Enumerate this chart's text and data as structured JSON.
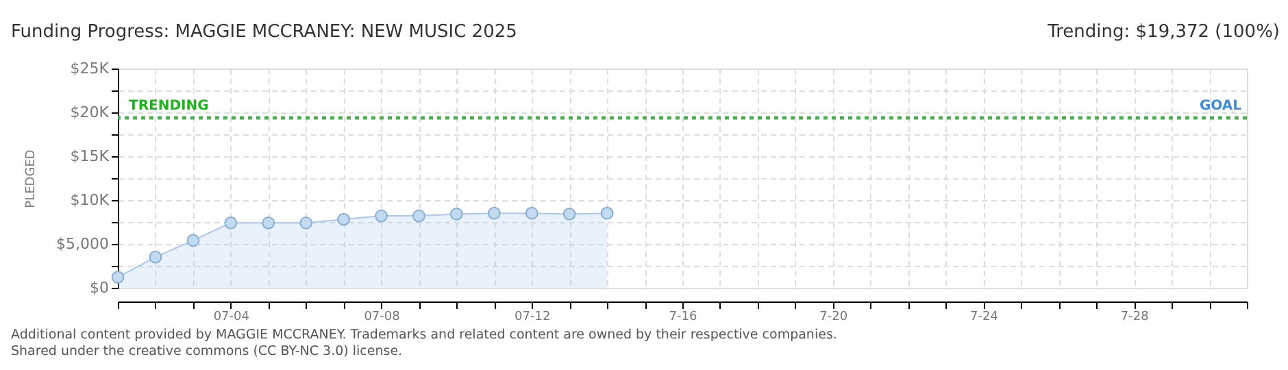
{
  "chart_data": {
    "type": "area",
    "title": "Funding Progress: MAGGIE MCCRANEY: NEW MUSIC 2025",
    "ylabel": "PLEDGED",
    "annotations": [
      "Trending: $19,372 (100%)",
      {
        "text": "GOAL",
        "x": "2025-07-31",
        "y": 19372
      },
      "Additional content provided by MAGGIE MCCRANEY. Trademarks and related content are owned by their respective companies.",
      "Shared under the creative commons (CC BY-NC 3.0) license."
    ],
    "x": [
      "2025-07-01",
      "2025-07-02",
      "2025-07-03",
      "2025-07-04",
      "2025-07-05",
      "2025-07-06",
      "2025-07-07",
      "2025-07-08",
      "2025-07-09",
      "2025-07-10",
      "2025-07-11",
      "2025-07-12",
      "2025-07-13",
      "2025-07-14"
    ],
    "series": [
      {
        "color": "#a9c8ec",
        "values": [
          1200,
          3500,
          5400,
          7400,
          7400,
          7400,
          7800,
          8200,
          8200,
          8400,
          8500,
          8500,
          8400,
          8500
        ]
      }
    ],
    "xlim": [
      "2025-07-01",
      "2025-07-31"
    ],
    "xticks": [
      {
        "value": "2025-07-01",
        "label": null
      },
      {
        "value": "2025-07-02",
        "label": null
      },
      {
        "value": "2025-07-03",
        "label": null
      },
      {
        "value": "2025-07-04",
        "label": "07-04"
      },
      {
        "value": "2025-07-05",
        "label": null
      },
      {
        "value": "2025-07-06",
        "label": null
      },
      {
        "value": "2025-07-07",
        "label": null
      },
      {
        "value": "2025-07-08",
        "label": "07-08"
      },
      {
        "value": "2025-07-09",
        "label": null
      },
      {
        "value": "2025-07-10",
        "label": null
      },
      {
        "value": "2025-07-11",
        "label": null
      },
      {
        "value": "2025-07-12",
        "label": "07-12"
      },
      {
        "value": "2025-07-13",
        "label": null
      },
      {
        "value": "2025-07-14",
        "label": null
      },
      {
        "value": "2025-07-15",
        "label": null
      },
      {
        "value": "2025-07-16",
        "label": "7-16"
      },
      {
        "value": "2025-07-17",
        "label": null
      },
      {
        "value": "2025-07-18",
        "label": null
      },
      {
        "value": "2025-07-19",
        "label": null
      },
      {
        "value": "2025-07-20",
        "label": "7-20"
      },
      {
        "value": "2025-07-21",
        "label": null
      },
      {
        "value": "2025-07-22",
        "label": null
      },
      {
        "value": "2025-07-23",
        "label": null
      },
      {
        "value": "2025-07-24",
        "label": "7-24"
      },
      {
        "value": "2025-07-25",
        "label": null
      },
      {
        "value": "2025-07-26",
        "label": null
      },
      {
        "value": "2025-07-27",
        "label": null
      },
      {
        "value": "2025-07-28",
        "label": "7-28"
      },
      {
        "value": "2025-07-29",
        "label": null
      },
      {
        "value": "2025-07-30",
        "label": null
      },
      {
        "value": "2025-07-31",
        "label": null
      }
    ],
    "ylim": [
      0,
      25000
    ],
    "yticks": [
      {
        "value": 0,
        "label": "$0"
      },
      {
        "value": 2500,
        "label": null
      },
      {
        "value": 5000,
        "label": "$5,000"
      },
      {
        "value": 7500,
        "label": null
      },
      {
        "value": 10000,
        "label": "$10K"
      },
      {
        "value": 12500,
        "label": null
      },
      {
        "value": 15000,
        "label": "$15K"
      },
      {
        "value": 17500,
        "label": null
      },
      {
        "value": 20000,
        "label": "$20K"
      },
      {
        "value": 22500,
        "label": null
      },
      {
        "value": 25000,
        "label": "$25K"
      }
    ],
    "ref_lines": [
      {
        "axis": "y",
        "value": 19372,
        "label": "TRENDING",
        "color": "#4caf50",
        "line_style": "dotted"
      }
    ],
    "grid": true,
    "marker": "circle",
    "line_style": "solid"
  }
}
